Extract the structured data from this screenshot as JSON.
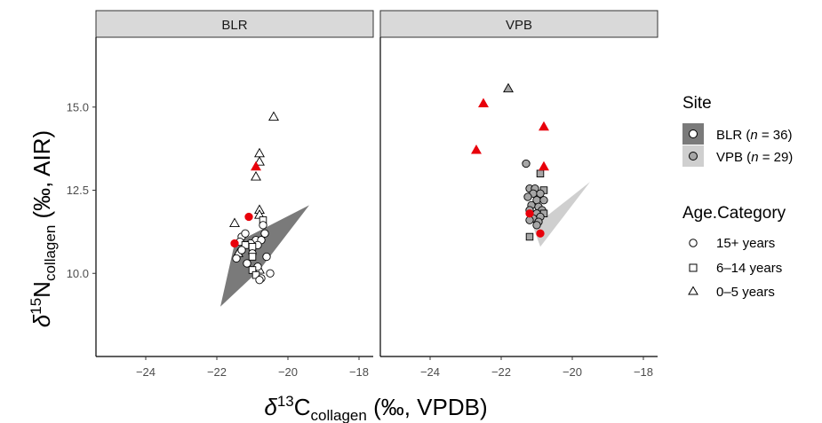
{
  "chart_data": {
    "type": "scatter",
    "xlabel": {
      "prefix": "δ",
      "sup": "13",
      "main": "C",
      "sub": "collagen",
      "suffix": " (‰, VPDB)"
    },
    "ylabel": {
      "prefix": "δ",
      "sup": "15",
      "main": "N",
      "sub": "collagen",
      "suffix": " (‰, AIR)"
    },
    "xlim": [
      -25.4,
      -17.6
    ],
    "ylim": [
      7.5,
      17.1
    ],
    "xticks": [
      -24,
      -22,
      -20,
      -18
    ],
    "yticks": [
      10.0,
      12.5,
      15.0
    ],
    "xtick_labels": [
      "−24",
      "−22",
      "−20",
      "−18"
    ],
    "ytick_labels": [
      "10.0",
      "12.5",
      "15.0"
    ],
    "grid": false,
    "legend_position": "right",
    "facets": [
      {
        "name": "BLR",
        "hull": [
          [
            -21.9,
            9.0
          ],
          [
            -21.5,
            10.9
          ],
          [
            -19.4,
            12.05
          ],
          [
            -20.8,
            10.1
          ]
        ],
        "hull_color": "#7a7a7a",
        "point_fill": "#ffffff",
        "points": [
          {
            "x": -20.4,
            "y": 14.7,
            "age": "0-5",
            "red": false
          },
          {
            "x": -20.8,
            "y": 13.6,
            "age": "0-5",
            "red": false
          },
          {
            "x": -20.8,
            "y": 13.35,
            "age": "0-5",
            "red": false
          },
          {
            "x": -20.9,
            "y": 13.2,
            "age": "0-5",
            "red": true
          },
          {
            "x": -20.9,
            "y": 12.9,
            "age": "0-5",
            "red": false
          },
          {
            "x": -20.8,
            "y": 11.9,
            "age": "0-5",
            "red": false
          },
          {
            "x": -21.5,
            "y": 11.5,
            "age": "0-5",
            "red": false
          },
          {
            "x": -20.8,
            "y": 11.75,
            "age": "0-5",
            "red": false
          },
          {
            "x": -21.4,
            "y": 10.6,
            "age": "0-5",
            "red": false
          },
          {
            "x": -20.8,
            "y": 10.1,
            "age": "0-5",
            "red": false
          },
          {
            "x": -21.1,
            "y": 11.7,
            "age": "15+",
            "red": true
          },
          {
            "x": -21.5,
            "y": 10.9,
            "age": "15+",
            "red": true
          },
          {
            "x": -20.7,
            "y": 11.6,
            "age": "6-14",
            "red": false
          },
          {
            "x": -20.7,
            "y": 11.45,
            "age": "15+",
            "red": false
          },
          {
            "x": -20.65,
            "y": 11.2,
            "age": "15+",
            "red": false
          },
          {
            "x": -21.3,
            "y": 11.1,
            "age": "15+",
            "red": false
          },
          {
            "x": -21.2,
            "y": 11.2,
            "age": "15+",
            "red": false
          },
          {
            "x": -20.9,
            "y": 11.0,
            "age": "15+",
            "red": false
          },
          {
            "x": -20.75,
            "y": 11.0,
            "age": "15+",
            "red": false
          },
          {
            "x": -21.35,
            "y": 10.95,
            "age": "15+",
            "red": false
          },
          {
            "x": -21.05,
            "y": 10.9,
            "age": "15+",
            "red": false
          },
          {
            "x": -20.85,
            "y": 10.85,
            "age": "15+",
            "red": false
          },
          {
            "x": -21.2,
            "y": 10.85,
            "age": "6-14",
            "red": false
          },
          {
            "x": -21.0,
            "y": 10.8,
            "age": "6-14",
            "red": false
          },
          {
            "x": -21.3,
            "y": 10.7,
            "age": "15+",
            "red": false
          },
          {
            "x": -21.0,
            "y": 10.6,
            "age": "15+",
            "red": false
          },
          {
            "x": -20.6,
            "y": 10.5,
            "age": "15+",
            "red": false
          },
          {
            "x": -21.45,
            "y": 10.45,
            "age": "15+",
            "red": false
          },
          {
            "x": -21.0,
            "y": 10.5,
            "age": "6-14",
            "red": false
          },
          {
            "x": -21.15,
            "y": 10.3,
            "age": "15+",
            "red": false
          },
          {
            "x": -20.85,
            "y": 10.2,
            "age": "15+",
            "red": false
          },
          {
            "x": -21.0,
            "y": 10.1,
            "age": "6-14",
            "red": false
          },
          {
            "x": -20.5,
            "y": 10.0,
            "age": "15+",
            "red": false
          },
          {
            "x": -20.9,
            "y": 9.95,
            "age": "6-14",
            "red": false
          },
          {
            "x": -20.75,
            "y": 9.85,
            "age": "15+",
            "red": false
          },
          {
            "x": -20.8,
            "y": 9.8,
            "age": "15+",
            "red": false
          }
        ]
      },
      {
        "name": "VPB",
        "hull": [
          [
            -20.9,
            10.8
          ],
          [
            -19.5,
            12.75
          ],
          [
            -21.1,
            11.4
          ]
        ],
        "hull_color": "#cfcfcf",
        "point_fill": "#a6a6a6",
        "points": [
          {
            "x": -21.8,
            "y": 15.55,
            "age": "0-5",
            "red": false
          },
          {
            "x": -22.5,
            "y": 15.1,
            "age": "0-5",
            "red": true
          },
          {
            "x": -20.8,
            "y": 14.4,
            "age": "0-5",
            "red": true
          },
          {
            "x": -22.7,
            "y": 13.7,
            "age": "0-5",
            "red": true
          },
          {
            "x": -20.8,
            "y": 13.2,
            "age": "0-5",
            "red": true
          },
          {
            "x": -21.3,
            "y": 13.3,
            "age": "15+",
            "red": false
          },
          {
            "x": -20.9,
            "y": 13.0,
            "age": "6-14",
            "red": false
          },
          {
            "x": -21.2,
            "y": 12.55,
            "age": "15+",
            "red": false
          },
          {
            "x": -21.05,
            "y": 12.55,
            "age": "15+",
            "red": false
          },
          {
            "x": -20.8,
            "y": 12.5,
            "age": "6-14",
            "red": false
          },
          {
            "x": -21.1,
            "y": 12.4,
            "age": "15+",
            "red": false
          },
          {
            "x": -20.9,
            "y": 12.4,
            "age": "15+",
            "red": false
          },
          {
            "x": -21.25,
            "y": 12.3,
            "age": "15+",
            "red": false
          },
          {
            "x": -21.0,
            "y": 12.2,
            "age": "15+",
            "red": false
          },
          {
            "x": -20.8,
            "y": 12.2,
            "age": "15+",
            "red": false
          },
          {
            "x": -21.15,
            "y": 12.05,
            "age": "15+",
            "red": false
          },
          {
            "x": -20.95,
            "y": 12.0,
            "age": "15+",
            "red": false
          },
          {
            "x": -21.2,
            "y": 11.9,
            "age": "15+",
            "red": false
          },
          {
            "x": -20.85,
            "y": 11.9,
            "age": "15+",
            "red": false
          },
          {
            "x": -21.0,
            "y": 11.8,
            "age": "15+",
            "red": false
          },
          {
            "x": -20.8,
            "y": 11.8,
            "age": "6-14",
            "red": false
          },
          {
            "x": -21.2,
            "y": 11.8,
            "age": "15+",
            "red": true
          },
          {
            "x": -20.9,
            "y": 11.7,
            "age": "15+",
            "red": false
          },
          {
            "x": -21.1,
            "y": 11.65,
            "age": "15+",
            "red": false
          },
          {
            "x": -21.2,
            "y": 11.6,
            "age": "15+",
            "red": false
          },
          {
            "x": -20.95,
            "y": 11.55,
            "age": "15+",
            "red": false
          },
          {
            "x": -21.0,
            "y": 11.45,
            "age": "15+",
            "red": false
          },
          {
            "x": -20.9,
            "y": 11.2,
            "age": "15+",
            "red": true
          },
          {
            "x": -21.2,
            "y": 11.1,
            "age": "6-14",
            "red": false
          }
        ]
      }
    ],
    "highlight_color": "#e8000b",
    "legend": {
      "site_title": "Site",
      "site_items": [
        {
          "label": "BLR",
          "n_prefix": "n",
          "n_suffix": " = 36)",
          "fill": "#7a7a7a",
          "point": "#ffffff"
        },
        {
          "label": "VPB",
          "n_prefix": "n",
          "n_suffix": " = 29)",
          "fill": "#cfcfcf",
          "point": "#a6a6a6"
        }
      ],
      "age_title": "Age.Category",
      "age_items": [
        {
          "shape": "circle",
          "label": "15+ years"
        },
        {
          "shape": "square",
          "label": "6–14 years"
        },
        {
          "shape": "triangle",
          "label": "0–5 years"
        }
      ]
    }
  }
}
